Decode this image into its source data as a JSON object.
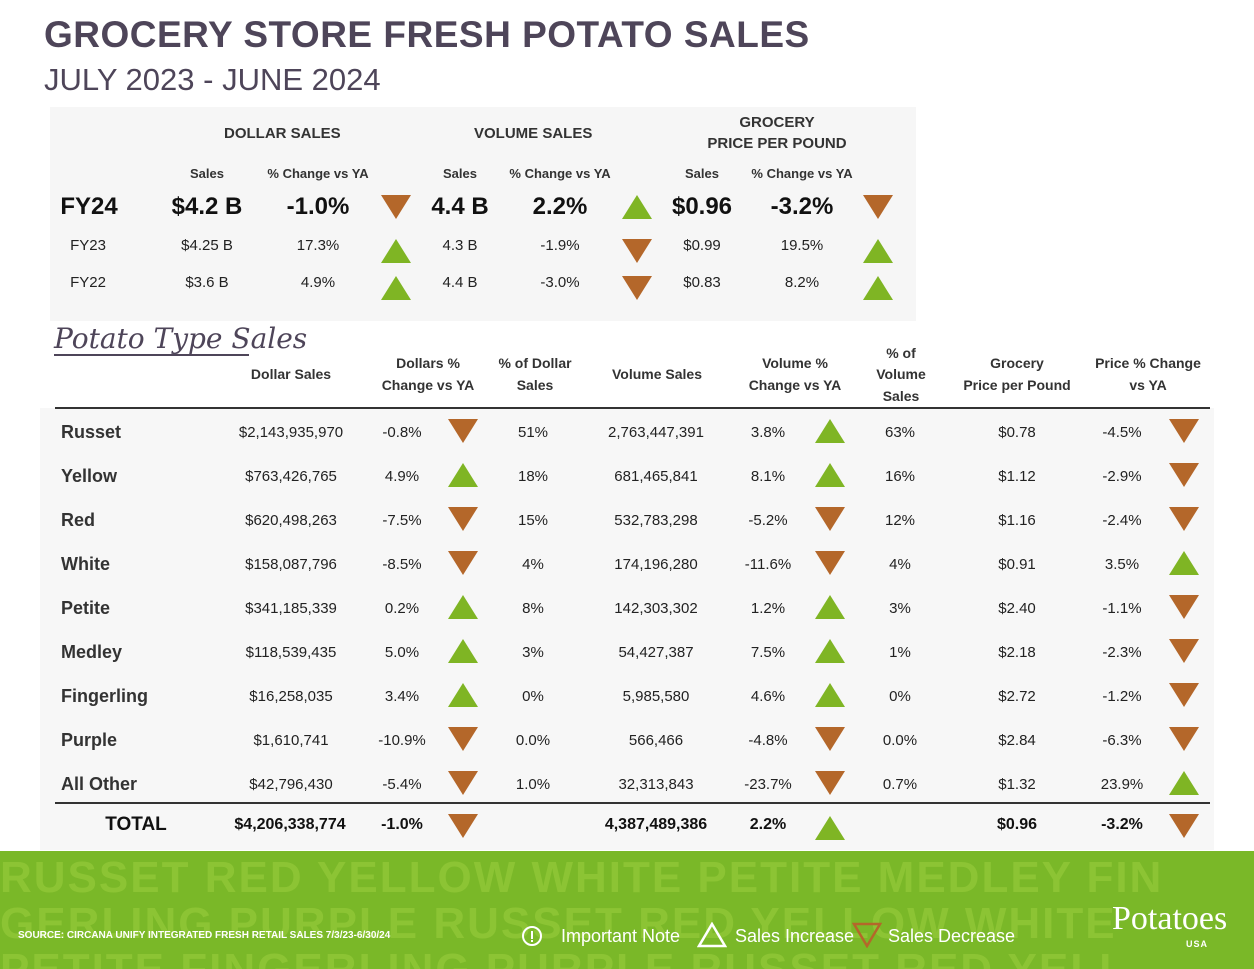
{
  "title": "GROCERY STORE  FRESH POTATO SALES",
  "subtitle": "JULY 2023 - JUNE 2024",
  "summary": {
    "headers": {
      "dollar": "DOLLAR SALES",
      "volume": "VOLUME SALES",
      "price_line1": "GROCERY",
      "price_line2": "PRICE PER POUND"
    },
    "subheaders": {
      "sales": "Sales",
      "change": "% Change vs YA"
    },
    "rows": [
      {
        "label": "FY24",
        "dollar": "$4.2 B",
        "dollar_chg": "-1.0%",
        "dollar_dir": "down",
        "volume": "4.4 B",
        "volume_chg": "2.2%",
        "volume_dir": "up",
        "price": "$0.96",
        "price_chg": "-3.2%",
        "price_dir": "down"
      },
      {
        "label": "FY23",
        "dollar": "$4.25 B",
        "dollar_chg": "17.3%",
        "dollar_dir": "up",
        "volume": "4.3 B",
        "volume_chg": "-1.9%",
        "volume_dir": "down",
        "price": "$0.99",
        "price_chg": "19.5%",
        "price_dir": "up"
      },
      {
        "label": "FY22",
        "dollar": "$3.6 B",
        "dollar_chg": "4.9%",
        "dollar_dir": "up",
        "volume": "4.4 B",
        "volume_chg": "-3.0%",
        "volume_dir": "down",
        "price": "$0.83",
        "price_chg": "8.2%",
        "price_dir": "up"
      }
    ]
  },
  "potato_type_heading": "Potato Type Sales",
  "table": {
    "headers": {
      "dollar_sales": "Dollar Sales",
      "dollars_chg_1": "Dollars %",
      "dollars_chg_2": "Change vs YA",
      "pct_dollar_1": "% of Dollar",
      "pct_dollar_2": "Sales",
      "volume_sales": "Volume Sales",
      "volume_chg_1": "Volume %",
      "volume_chg_2": "Change vs YA",
      "pct_volume_1": "% of",
      "pct_volume_2": "Volume",
      "pct_volume_3": "Sales",
      "price_1": "Grocery",
      "price_2": "Price per Pound",
      "price_chg_1": "Price % Change",
      "price_chg_2": "vs YA"
    },
    "rows": [
      {
        "name": "Russet",
        "dollars": "$2,143,935,970",
        "dchg": "-0.8%",
        "ddir": "down",
        "dpct": "51%",
        "volume": "2,763,447,391",
        "vchg": "3.8%",
        "vdir": "up",
        "vpct": "63%",
        "price": "$0.78",
        "pchg": "-4.5%",
        "pdir": "down"
      },
      {
        "name": "Yellow",
        "dollars": "$763,426,765",
        "dchg": "4.9%",
        "ddir": "up",
        "dpct": "18%",
        "volume": "681,465,841",
        "vchg": "8.1%",
        "vdir": "up",
        "vpct": "16%",
        "price": "$1.12",
        "pchg": "-2.9%",
        "pdir": "down"
      },
      {
        "name": "Red",
        "dollars": "$620,498,263",
        "dchg": "-7.5%",
        "ddir": "down",
        "dpct": "15%",
        "volume": "532,783,298",
        "vchg": "-5.2%",
        "vdir": "down",
        "vpct": "12%",
        "price": "$1.16",
        "pchg": "-2.4%",
        "pdir": "down"
      },
      {
        "name": "White",
        "dollars": "$158,087,796",
        "dchg": "-8.5%",
        "ddir": "down",
        "dpct": "4%",
        "volume": "174,196,280",
        "vchg": "-11.6%",
        "vdir": "down",
        "vpct": "4%",
        "price": "$0.91",
        "pchg": "3.5%",
        "pdir": "up"
      },
      {
        "name": "Petite",
        "dollars": "$341,185,339",
        "dchg": "0.2%",
        "ddir": "up",
        "dpct": "8%",
        "volume": "142,303,302",
        "vchg": "1.2%",
        "vdir": "up",
        "vpct": "3%",
        "price": "$2.40",
        "pchg": "-1.1%",
        "pdir": "down"
      },
      {
        "name": "Medley",
        "dollars": "$118,539,435",
        "dchg": "5.0%",
        "ddir": "up",
        "dpct": "3%",
        "volume": "54,427,387",
        "vchg": "7.5%",
        "vdir": "up",
        "vpct": "1%",
        "price": "$2.18",
        "pchg": "-2.3%",
        "pdir": "down"
      },
      {
        "name": "Fingerling",
        "dollars": "$16,258,035",
        "dchg": "3.4%",
        "ddir": "up",
        "dpct": "0%",
        "volume": "5,985,580",
        "vchg": "4.6%",
        "vdir": "up",
        "vpct": "0%",
        "price": "$2.72",
        "pchg": "-1.2%",
        "pdir": "down"
      },
      {
        "name": "Purple",
        "dollars": "$1,610,741",
        "dchg": "-10.9%",
        "ddir": "down",
        "dpct": "0.0%",
        "volume": "566,466",
        "vchg": "-4.8%",
        "vdir": "down",
        "vpct": "0.0%",
        "price": "$2.84",
        "pchg": "-6.3%",
        "pdir": "down"
      },
      {
        "name": "All Other",
        "dollars": "$42,796,430",
        "dchg": "-5.4%",
        "ddir": "down",
        "dpct": "1.0%",
        "volume": "32,313,843",
        "vchg": "-23.7%",
        "vdir": "down",
        "vpct": "0.7%",
        "price": "$1.32",
        "pchg": "23.9%",
        "pdir": "up"
      }
    ],
    "total": {
      "name": "TOTAL",
      "dollars": "$4,206,338,774",
      "dchg": "-1.0%",
      "ddir": "down",
      "volume": "4,387,489,386",
      "vchg": "2.2%",
      "vdir": "up",
      "price": "$0.96",
      "pchg": "-3.2%",
      "pdir": "down"
    }
  },
  "footer": {
    "band_line1": "RUSSET RED YELLOW WHITE PETITE MEDLEY FIN",
    "band_line2": "GERLING PURPLE RUSSET RED YELLOW WHITE",
    "band_line3": "PETITE FINGERLING PURPLE RUSSET RED YELL",
    "source": "SOURCE: CIRCANA UNIFY INTEGRATED FRESH  RETAIL SALES 7/3/23-6/30/24",
    "legend_note": "Important Note",
    "legend_increase": "Sales Increase",
    "legend_decrease": "Sales Decrease",
    "logo": "Potatoes",
    "logo_sub": "USA"
  },
  "colors": {
    "up": "#7fb524",
    "down": "#b4672a",
    "title": "#4e4559",
    "band": "#7ab828"
  }
}
